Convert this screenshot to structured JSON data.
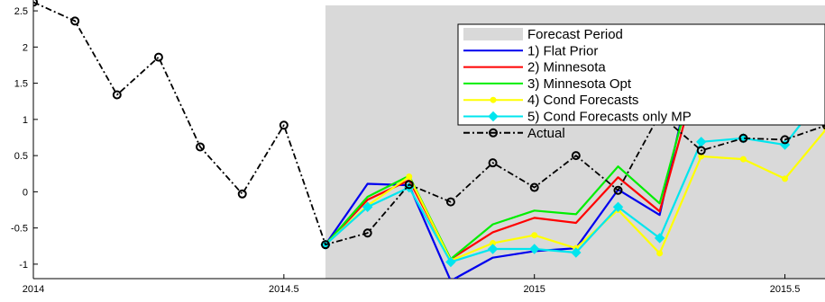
{
  "chart_data": {
    "type": "line",
    "title": "",
    "xlabel": "",
    "ylabel": "",
    "xlim": [
      2014,
      2015.58
    ],
    "ylim": [
      -1.2,
      2.65
    ],
    "xticks": [
      2014,
      2014.5,
      2015,
      2015.5
    ],
    "xtick_labels": [
      "2014",
      "2014.5",
      "2015",
      "2015.5"
    ],
    "yticks": [
      -1,
      -0.5,
      0,
      0.5,
      1,
      1.5,
      2,
      2.5
    ],
    "ytick_labels": [
      "-1",
      "-0.5",
      "0",
      "0.5",
      "1",
      "1.5",
      "2",
      "2.5"
    ],
    "grid": false,
    "legend_position": "top-right",
    "forecast_period": {
      "label": "Forecast Period",
      "start": 2014.583,
      "end": 2015.58,
      "color": "#d9d9d9"
    },
    "x": [
      2014.0,
      2014.083,
      2014.167,
      2014.25,
      2014.333,
      2014.417,
      2014.5,
      2014.583,
      2014.667,
      2014.75,
      2014.833,
      2014.917,
      2015.0,
      2015.083,
      2015.167,
      2015.25,
      2015.333,
      2015.417,
      2015.5,
      2015.583
    ],
    "series": [
      {
        "name": "1) Flat Prior",
        "color": "#0000ee",
        "dash": "solid",
        "marker": "none",
        "values": [
          null,
          null,
          null,
          null,
          null,
          null,
          null,
          -0.73,
          0.11,
          0.09,
          -1.23,
          -0.91,
          -0.82,
          -0.78,
          0.03,
          -0.32,
          2.23,
          1.78,
          1.6,
          2.25
        ]
      },
      {
        "name": "2) Minnesota",
        "color": "#ff0000",
        "dash": "solid",
        "marker": "none",
        "values": [
          null,
          null,
          null,
          null,
          null,
          null,
          null,
          -0.73,
          -0.11,
          0.16,
          -0.93,
          -0.56,
          -0.36,
          -0.43,
          0.2,
          -0.27,
          1.8,
          1.5,
          1.3,
          1.6
        ]
      },
      {
        "name": "3) Minnesota Opt",
        "color": "#00ee00",
        "dash": "solid",
        "marker": "none",
        "values": [
          null,
          null,
          null,
          null,
          null,
          null,
          null,
          -0.73,
          -0.07,
          0.22,
          -0.93,
          -0.45,
          -0.26,
          -0.31,
          0.35,
          -0.16,
          1.97,
          1.63,
          1.47,
          1.92
        ]
      },
      {
        "name": "4) Cond Forecasts",
        "color": "#ffff00",
        "dash": "solid",
        "marker": "dot",
        "values": [
          null,
          null,
          null,
          null,
          null,
          null,
          null,
          -0.73,
          -0.19,
          0.21,
          -0.95,
          -0.71,
          -0.6,
          -0.78,
          -0.25,
          -0.85,
          0.49,
          0.45,
          0.18,
          0.87
        ]
      },
      {
        "name": "5) Cond Forecasts only MP",
        "color": "#00e5ee",
        "dash": "solid",
        "marker": "diamond",
        "values": [
          null,
          null,
          null,
          null,
          null,
          null,
          null,
          -0.73,
          -0.21,
          0.06,
          -0.97,
          -0.79,
          -0.79,
          -0.84,
          -0.21,
          -0.64,
          0.69,
          0.74,
          0.65,
          1.4
        ]
      },
      {
        "name": "Actual",
        "color": "#000000",
        "dash": "dashdot",
        "marker": "circle",
        "values": [
          2.62,
          2.36,
          1.34,
          1.86,
          0.62,
          -0.03,
          0.92,
          -0.73,
          -0.57,
          0.1,
          -0.14,
          0.4,
          0.06,
          0.5,
          0.02,
          1.07,
          0.57,
          0.74,
          0.72,
          0.92
        ]
      }
    ]
  }
}
